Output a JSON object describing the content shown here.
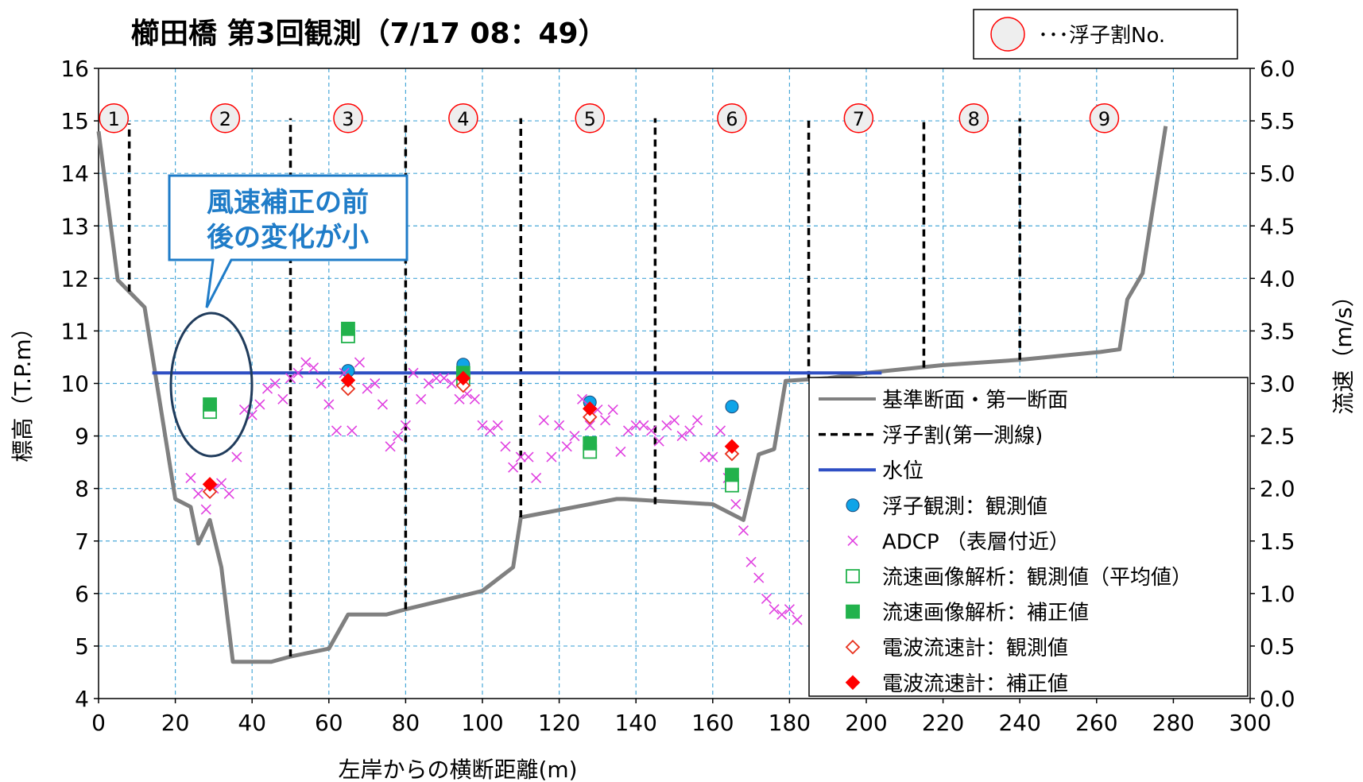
{
  "chart_data": {
    "type": "scatter",
    "title": "櫛田橋  第3回観測（7/17  08：49）",
    "xlabel": "左岸からの横断距離(m)",
    "ylabel": "標高（T.P.m）",
    "y2label": "流速（m/s）",
    "xlim": [
      0,
      300
    ],
    "ylim": [
      4,
      16
    ],
    "y2lim": [
      0.0,
      6.0
    ],
    "x_ticks": [
      "0",
      "20",
      "40",
      "60",
      "80",
      "100",
      "120",
      "140",
      "160",
      "180",
      "200",
      "220",
      "240",
      "260",
      "280",
      "300"
    ],
    "y_ticks": [
      "4",
      "5",
      "6",
      "7",
      "8",
      "9",
      "10",
      "11",
      "12",
      "13",
      "14",
      "15",
      "16"
    ],
    "y2_ticks": [
      "0.0",
      "0.5",
      "1.0",
      "1.5",
      "2.0",
      "2.5",
      "3.0",
      "3.5",
      "4.0",
      "4.5",
      "5.0",
      "5.5",
      "6.0"
    ],
    "grid": true,
    "top_legend": {
      "label": "･･･浮子割No."
    },
    "float_numbers": [
      {
        "label": "1",
        "x": 4
      },
      {
        "label": "2",
        "x": 33
      },
      {
        "label": "3",
        "x": 65
      },
      {
        "label": "4",
        "x": 95
      },
      {
        "label": "5",
        "x": 128
      },
      {
        "label": "6",
        "x": 165
      },
      {
        "label": "7",
        "x": 198
      },
      {
        "label": "8",
        "x": 228
      },
      {
        "label": "9",
        "x": 262
      }
    ],
    "callout": {
      "line1": "風速補正の前",
      "line2": "後の変化が小"
    },
    "series": [
      {
        "name": "基準断面・第一断面",
        "kind": "line",
        "axis": "left",
        "color": "#808080",
        "x": [
          0,
          5,
          12,
          20,
          24,
          26,
          29,
          32,
          35,
          45,
          50,
          60,
          65,
          75,
          80,
          100,
          108,
          110,
          135,
          137,
          160,
          168,
          172,
          176,
          179,
          190,
          200,
          220,
          240,
          261,
          266,
          268,
          272,
          278
        ],
        "y": [
          14.8,
          11.97,
          11.45,
          7.8,
          7.65,
          6.95,
          7.4,
          6.5,
          4.7,
          4.7,
          4.8,
          4.95,
          5.6,
          5.6,
          5.7,
          6.05,
          6.5,
          7.45,
          7.8,
          7.8,
          7.7,
          7.4,
          8.65,
          8.75,
          10.05,
          10.1,
          10.2,
          10.35,
          10.45,
          10.6,
          10.65,
          11.6,
          12.1,
          14.9
        ]
      },
      {
        "name": "浮子割(第一測線)",
        "kind": "vlines",
        "axis": "left",
        "color": "#000000",
        "lines": [
          {
            "x": 8,
            "y0": 11.75,
            "y1": 14.95
          },
          {
            "x": 50,
            "y0": 4.8,
            "y1": 15.05
          },
          {
            "x": 80,
            "y0": 5.7,
            "y1": 15.0
          },
          {
            "x": 110,
            "y0": 7.45,
            "y1": 15.05
          },
          {
            "x": 145,
            "y0": 7.7,
            "y1": 15.05
          },
          {
            "x": 185,
            "y0": 10.1,
            "y1": 15.05
          },
          {
            "x": 215,
            "y0": 10.3,
            "y1": 15.05
          },
          {
            "x": 240,
            "y0": 10.45,
            "y1": 15.05
          }
        ]
      },
      {
        "name": "水位",
        "kind": "line",
        "axis": "left",
        "color": "#2f4fc4",
        "x": [
          14,
          204
        ],
        "y": [
          10.2,
          10.2
        ]
      },
      {
        "name": "浮子観測：観測値",
        "kind": "circle",
        "axis": "right",
        "color": "#0fa4e8",
        "x": [
          65,
          95,
          128,
          165
        ],
        "y": [
          3.12,
          3.18,
          2.82,
          2.78
        ]
      },
      {
        "name": "ADCP （表層付近）",
        "kind": "cross",
        "axis": "right",
        "color": "#e040e0",
        "x": [
          24,
          26,
          28,
          30,
          32,
          34,
          36,
          38,
          40,
          42,
          44,
          46,
          48,
          50,
          52,
          54,
          56,
          58,
          60,
          62,
          64,
          66,
          68,
          70,
          72,
          74,
          76,
          78,
          80,
          82,
          84,
          86,
          88,
          90,
          92,
          94,
          96,
          98,
          100,
          102,
          104,
          106,
          108,
          110,
          112,
          114,
          116,
          118,
          120,
          122,
          124,
          126,
          128,
          130,
          132,
          134,
          136,
          138,
          140,
          142,
          144,
          146,
          148,
          150,
          152,
          154,
          156,
          158,
          160,
          162,
          164,
          166,
          168,
          170,
          172,
          174,
          176,
          178,
          180,
          182
        ],
        "y": [
          2.1,
          1.95,
          1.8,
          2.0,
          2.05,
          1.95,
          2.3,
          2.75,
          2.7,
          2.8,
          2.95,
          3.0,
          2.85,
          3.05,
          3.1,
          3.2,
          3.15,
          3.0,
          2.8,
          2.55,
          3.1,
          2.55,
          3.2,
          2.95,
          3.0,
          2.8,
          2.4,
          2.5,
          2.6,
          3.1,
          2.85,
          3.0,
          3.05,
          3.05,
          3.0,
          2.85,
          2.9,
          2.85,
          2.6,
          2.55,
          2.6,
          2.4,
          2.2,
          2.3,
          2.3,
          2.1,
          2.65,
          2.3,
          2.6,
          2.4,
          2.5,
          2.85,
          2.6,
          2.75,
          2.65,
          2.75,
          2.35,
          2.55,
          2.6,
          2.6,
          2.55,
          2.45,
          2.6,
          2.65,
          2.5,
          2.55,
          2.65,
          2.3,
          2.3,
          2.55,
          2.1,
          1.85,
          1.6,
          1.3,
          1.15,
          0.95,
          0.85,
          0.8,
          0.85,
          0.75
        ]
      },
      {
        "name": "流速画像解析：観測値（平均値）",
        "kind": "square-open",
        "axis": "right",
        "color": "#22b24c",
        "x": [
          29,
          65,
          95,
          128,
          165
        ],
        "y": [
          2.73,
          3.45,
          3.04,
          2.35,
          2.03
        ]
      },
      {
        "name": "流速画像解析：補正値",
        "kind": "square",
        "axis": "right",
        "color": "#22b24c",
        "x": [
          29,
          65,
          95,
          128,
          165
        ],
        "y": [
          2.8,
          3.52,
          3.1,
          2.43,
          2.13
        ]
      },
      {
        "name": "電波流速計：観測値",
        "kind": "diamond-open",
        "axis": "right",
        "color": "#e8321e",
        "x": [
          29,
          65,
          95,
          128,
          165
        ],
        "y": [
          1.97,
          2.95,
          2.98,
          2.68,
          2.33
        ]
      },
      {
        "name": "電波流速計：補正値",
        "kind": "diamond",
        "axis": "right",
        "color": "#ff0000",
        "x": [
          29,
          65,
          95,
          128,
          165
        ],
        "y": [
          2.04,
          3.03,
          3.05,
          2.76,
          2.4
        ]
      }
    ]
  }
}
